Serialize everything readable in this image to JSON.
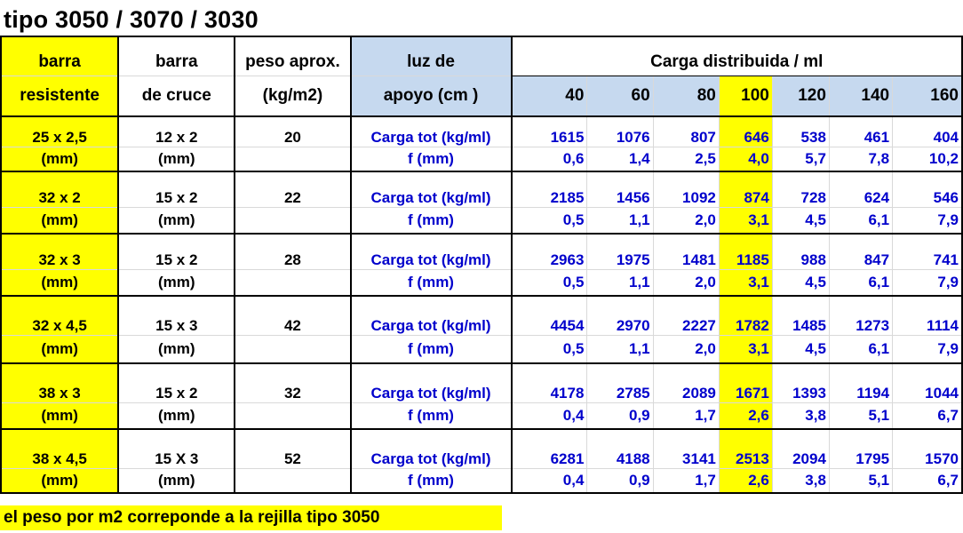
{
  "title": "tipo 3050 / 3070 / 3030",
  "header": {
    "col1": [
      "barra",
      "resistente"
    ],
    "col2": [
      "barra",
      "de cruce"
    ],
    "col3": [
      "peso aprox.",
      "(kg/m2)"
    ],
    "col4": [
      "luz  de",
      "apoyo (cm )"
    ],
    "group": "Carga   distribuida / ml",
    "spans": [
      "40",
      "60",
      "80",
      "100",
      "120",
      "140",
      "160"
    ]
  },
  "rows": [
    {
      "resistente": "25 x 2,5",
      "cruce": "12 x 2",
      "peso": "20",
      "unit": "(mm)",
      "carga_label": "Carga tot (kg/ml)",
      "f_label": "f  (mm)",
      "carga": [
        "1615",
        "1076",
        "807",
        "646",
        "538",
        "461",
        "404"
      ],
      "f": [
        "0,6",
        "1,4",
        "2,5",
        "4,0",
        "5,7",
        "7,8",
        "10,2"
      ]
    },
    {
      "resistente": "32 x 2",
      "cruce": "15 x 2",
      "peso": "22",
      "unit": "(mm)",
      "carga_label": "Carga tot (kg/ml)",
      "f_label": "f  (mm)",
      "carga": [
        "2185",
        "1456",
        "1092",
        "874",
        "728",
        "624",
        "546"
      ],
      "f": [
        "0,5",
        "1,1",
        "2,0",
        "3,1",
        "4,5",
        "6,1",
        "7,9"
      ]
    },
    {
      "resistente": "32 x 3",
      "cruce": "15 x 2",
      "peso": "28",
      "unit": "(mm)",
      "carga_label": "Carga tot (kg/ml)",
      "f_label": "f  (mm)",
      "carga": [
        "2963",
        "1975",
        "1481",
        "1185",
        "988",
        "847",
        "741"
      ],
      "f": [
        "0,5",
        "1,1",
        "2,0",
        "3,1",
        "4,5",
        "6,1",
        "7,9"
      ]
    },
    {
      "resistente": "32 x 4,5",
      "cruce": "15 x 3",
      "peso": "42",
      "unit": "(mm)",
      "carga_label": "Carga tot (kg/ml)",
      "f_label": "f  (mm)",
      "carga": [
        "4454",
        "2970",
        "2227",
        "1782",
        "1485",
        "1273",
        "1114"
      ],
      "f": [
        "0,5",
        "1,1",
        "2,0",
        "3,1",
        "4,5",
        "6,1",
        "7,9"
      ]
    },
    {
      "resistente": "38 x 3",
      "cruce": "15 x 2",
      "peso": "32",
      "unit": "(mm)",
      "carga_label": "Carga tot (kg/ml)",
      "f_label": "f  (mm)",
      "carga": [
        "4178",
        "2785",
        "2089",
        "1671",
        "1393",
        "1194",
        "1044"
      ],
      "f": [
        "0,4",
        "0,9",
        "1,7",
        "2,6",
        "3,8",
        "5,1",
        "6,7"
      ]
    },
    {
      "resistente": "38 x 4,5",
      "cruce": "15 X 3",
      "peso": "52",
      "unit": "(mm)",
      "carga_label": "Carga tot (kg/ml)",
      "f_label": "f  (mm)",
      "carga": [
        "6281",
        "4188",
        "3141",
        "2513",
        "2094",
        "1795",
        "1570"
      ],
      "f": [
        "0,4",
        "0,9",
        "1,7",
        "2,6",
        "3,8",
        "5,1",
        "6,7"
      ]
    }
  ],
  "note": "el peso por m2 correponde a la rejilla tipo 3050",
  "colors": {
    "highlight": "#ffff00",
    "header_blue": "#c6d9ef",
    "value_text": "#0000cc"
  }
}
